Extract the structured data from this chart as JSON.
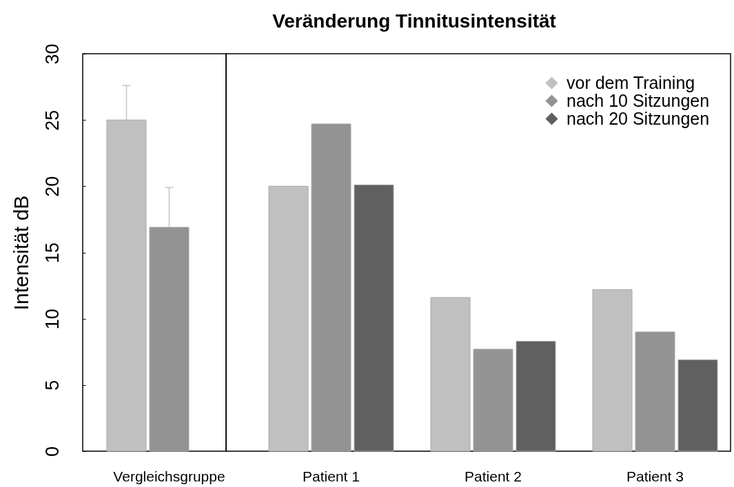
{
  "chart_data": [
    {
      "type": "bar",
      "ylabel": "Intensität dB",
      "categories": [
        "Vergleichsgruppe"
      ],
      "series": [
        {
          "color": "#c0c0c0",
          "values": [
            25.0
          ],
          "errors": [
            2.6
          ]
        },
        {
          "color": "#939393",
          "values": [
            16.9
          ],
          "errors": [
            3.0
          ]
        }
      ],
      "ylim": [
        0,
        30
      ],
      "yticks": [
        0,
        5,
        10,
        15,
        20,
        25,
        30
      ]
    },
    {
      "type": "bar",
      "title": "Veränderung Tinnitusintensität",
      "categories": [
        "Patient 1",
        "Patient 2",
        "Patient 3"
      ],
      "series": [
        {
          "name": "vor dem Training",
          "color": "#c0c0c0",
          "values": [
            20.0,
            11.6,
            12.2
          ]
        },
        {
          "name": "nach 10 Sitzungen",
          "color": "#939393",
          "values": [
            24.7,
            7.7,
            9.0
          ]
        },
        {
          "name": "nach 20 Sitzungen",
          "color": "#606060",
          "values": [
            20.1,
            8.3,
            6.9
          ]
        }
      ],
      "ylim": [
        0,
        30
      ],
      "legend": "top right",
      "tick_labels": "x"
    }
  ]
}
